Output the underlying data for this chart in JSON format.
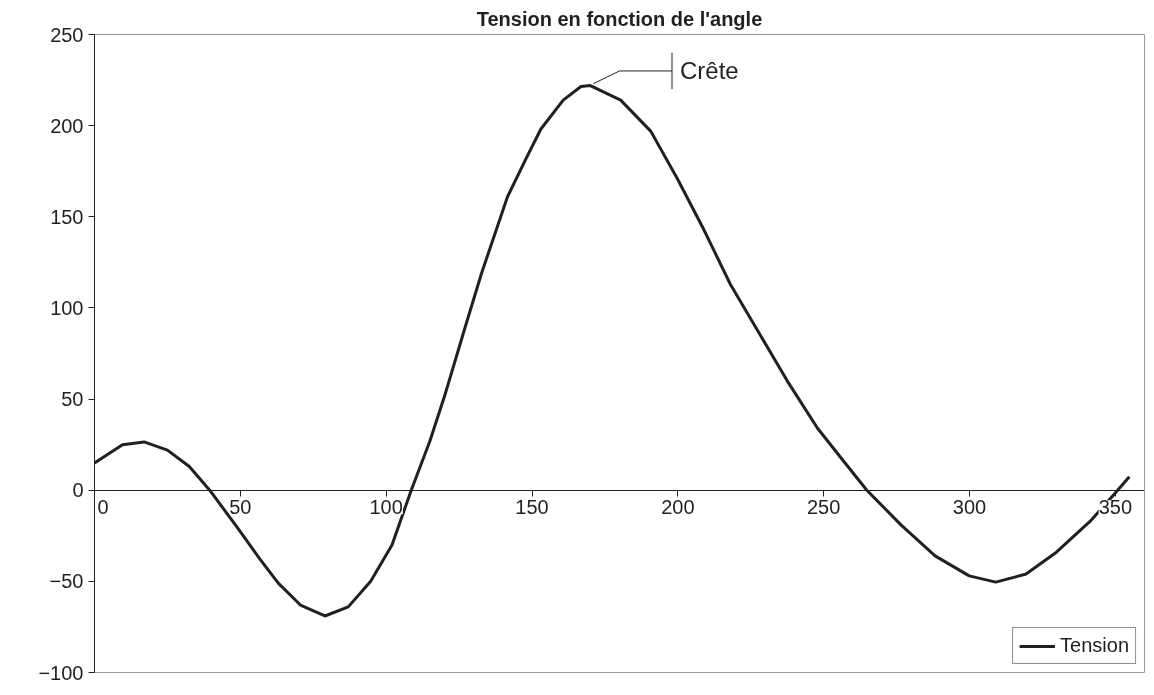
{
  "chart_data": {
    "type": "line",
    "title": "Tension en fonction de l'angle",
    "x": [
      0,
      9.6,
      17,
      25,
      32.5,
      39.5,
      49,
      56.6,
      63,
      70.6,
      79,
      87,
      94.7,
      102,
      108.6,
      115,
      120,
      127,
      132.7,
      141.6,
      148,
      153,
      160.7,
      166.8,
      170,
      180.4,
      190.7,
      199.8,
      208.9,
      218,
      228.3,
      237.5,
      247.9,
      257,
      264.8,
      276.5,
      288.2,
      299.9,
      309,
      319.4,
      329.8,
      341.4,
      349.9,
      354.8
    ],
    "series": [
      {
        "name": "Tension",
        "color": "#231f20",
        "values": [
          15,
          25,
          26.5,
          22,
          13,
          0,
          -20.5,
          -37.5,
          -51,
          -63,
          -69,
          -64,
          -50,
          -30,
          0,
          27,
          51.5,
          89,
          119,
          161,
          182,
          198,
          214,
          221.5,
          222,
          214,
          197,
          171,
          143,
          113,
          85,
          60,
          34,
          15.6,
          0,
          -19,
          -36,
          -47,
          -50.4,
          -46,
          -34,
          -17,
          -1.7,
          7.4
        ]
      }
    ],
    "xlim": [
      0,
      360
    ],
    "xticks": [
      0,
      50,
      100,
      150,
      200,
      250,
      300,
      350
    ],
    "ylim": [
      -100,
      250
    ],
    "yticks": [
      -100,
      -50,
      0,
      50,
      100,
      150,
      200,
      250
    ],
    "annotations": [
      {
        "text": "Crête",
        "x": 170,
        "y": 222
      }
    ],
    "grid": false,
    "legend": "bottom right",
    "marker": "none",
    "line_style": "solid"
  }
}
